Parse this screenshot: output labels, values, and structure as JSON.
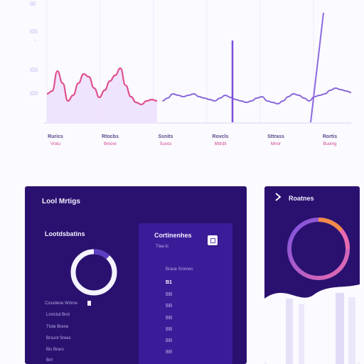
{
  "chart_data": {
    "type": "area",
    "title": "",
    "xlabel": "",
    "ylabel": "",
    "y_tick_labels": [
      "tl0",
      "t00",
      "t00",
      "t00",
      "t00"
    ],
    "x_tick_labels": [
      {
        "top": "Rurics",
        "bottom": "Vrotu"
      },
      {
        "top": "Rtocbs",
        "bottom": "Bmore"
      },
      {
        "top": "Ssnits",
        "bottom": "Suvos"
      },
      {
        "top": "Rovcls",
        "bottom": "Mttrdit"
      },
      {
        "top": "Sttrass",
        "bottom": "Mrror"
      },
      {
        "top": "Rortis",
        "bottom": "Buomg"
      }
    ],
    "series": [
      {
        "color": "#e0528f",
        "x": [
          0,
          1,
          2,
          3,
          4,
          5,
          6,
          7,
          8,
          9,
          10,
          11,
          12,
          13,
          14,
          15,
          16,
          17,
          18,
          19,
          20,
          21
        ],
        "values": [
          40,
          44,
          72,
          55,
          30,
          38,
          55,
          68,
          64,
          48,
          35,
          45,
          58,
          66,
          76,
          52,
          36,
          28,
          25,
          30,
          32,
          30
        ]
      },
      {
        "color": "#8a68d8",
        "x": [
          22,
          23,
          24,
          25,
          26,
          27,
          28,
          29,
          30,
          31,
          32,
          33,
          34,
          35,
          36,
          37,
          38,
          39,
          40,
          41,
          42,
          43,
          44,
          45,
          46,
          47,
          48,
          49,
          50,
          51,
          52,
          53,
          54,
          55,
          56,
          57,
          58
        ],
        "values": [
          30,
          34,
          40,
          38,
          36,
          38,
          40,
          36,
          34,
          32,
          30,
          34,
          38,
          35,
          32,
          30,
          28,
          30,
          34,
          36,
          30,
          28,
          26,
          30,
          36,
          40,
          38,
          34,
          30,
          36,
          38,
          40,
          45,
          48,
          46,
          44,
          42
        ]
      }
    ],
    "spikes": [
      {
        "x": 12,
        "value": 112
      },
      {
        "x": 18,
        "value": 150
      }
    ],
    "ylim": [
      0,
      160
    ],
    "legend": "none",
    "grid": "vertical"
  },
  "left_panel": {
    "title": "Lool Mrtigs",
    "section_title": "Lootdsbatins",
    "donut_fraction": 0.12,
    "list": [
      "Cssvdese Wrtrne",
      "Lrorctut Brot",
      "Ttote Brene",
      "Brsunt Srees",
      "Bis Braro",
      "Brrl"
    ],
    "inner": {
      "title": "Cortinenhes",
      "subtitle": "Tlaa ts",
      "list_header": "Braue Sromes",
      "items": [
        "B1",
        "BB",
        "BB",
        "BB",
        "BB",
        "BB",
        "BB"
      ]
    }
  },
  "right_panel": {
    "title": "Roatnes",
    "ring_colors": [
      "#f08a4b",
      "#e86ab0",
      "#6b3ad1",
      "#9b6bff"
    ]
  },
  "colors": {
    "panel": "#2a116f",
    "panel_inner": "#3b1c98",
    "line_pink": "#e0528f",
    "line_purple": "#8a68d8",
    "area_fill": "#e9dcff"
  }
}
